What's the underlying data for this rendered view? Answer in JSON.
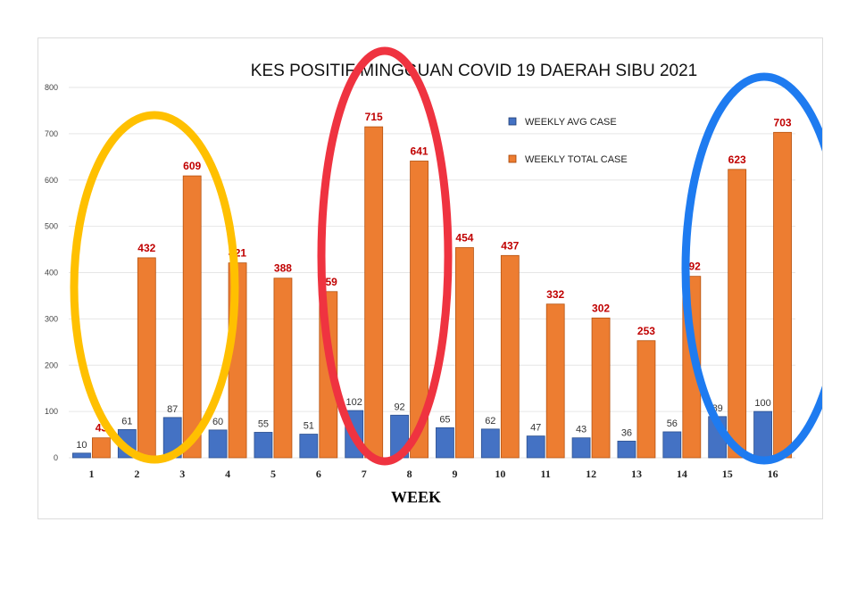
{
  "chart_data": {
    "type": "bar",
    "title": "KES POSITIF MINGGUAN COVID 19 DAERAH SIBU 2021",
    "xlabel": "WEEK",
    "ylabel": "",
    "ylim": [
      0,
      800
    ],
    "yticks": [
      0,
      100,
      200,
      300,
      400,
      500,
      600,
      700,
      800
    ],
    "grid": true,
    "legend_position": "top-right",
    "categories": [
      "1",
      "2",
      "3",
      "4",
      "5",
      "6",
      "7",
      "8",
      "9",
      "10",
      "11",
      "12",
      "13",
      "14",
      "15",
      "16"
    ],
    "series": [
      {
        "name": "WEEKLY AVG CASE",
        "color": "#4472C4",
        "values": [
          10,
          61,
          87,
          60,
          55,
          51,
          102,
          92,
          65,
          62,
          47,
          43,
          36,
          56,
          89,
          100
        ]
      },
      {
        "name": "WEEKLY TOTAL CASE",
        "color": "#ED7D31",
        "label_color": "#C00000",
        "values": [
          43,
          432,
          609,
          421,
          388,
          359,
          715,
          641,
          454,
          437,
          332,
          302,
          253,
          392,
          623,
          703
        ]
      }
    ]
  },
  "annotations": {
    "ellipse_colors": [
      "#FFC000",
      "#EF3340",
      "#1E7BF0"
    ]
  }
}
